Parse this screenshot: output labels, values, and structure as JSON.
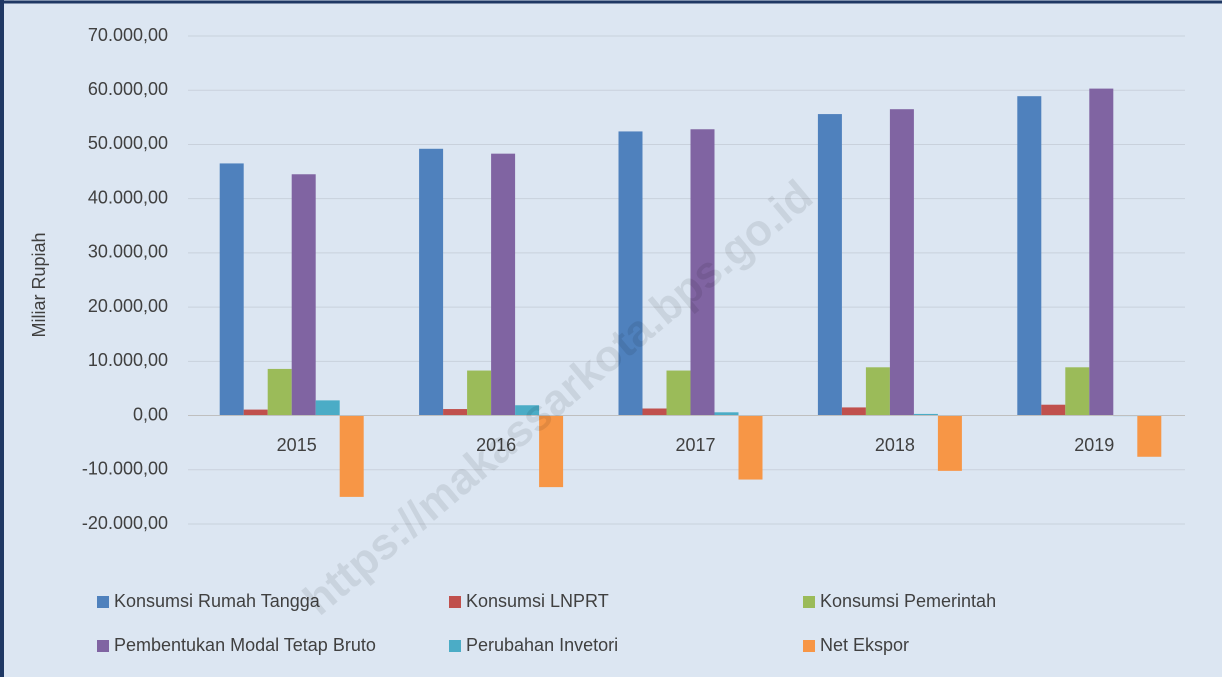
{
  "chart_data": {
    "type": "bar",
    "y_axis_label": "Miliar Rupiah",
    "watermark": "https://makassarkota.bps.go.id",
    "categories": [
      "2015",
      "2016",
      "2017",
      "2018",
      "2019"
    ],
    "series": [
      {
        "name": "Konsumsi Rumah Tangga",
        "color": "#4f81bd",
        "values": [
          46500,
          49200,
          52400,
          55600,
          58900
        ]
      },
      {
        "name": "Konsumsi LNPRT",
        "color": "#c0504d",
        "values": [
          1100,
          1200,
          1300,
          1500,
          2000
        ]
      },
      {
        "name": "Konsumsi Pemerintah",
        "color": "#9bbb59",
        "values": [
          8600,
          8300,
          8300,
          8900,
          8900
        ]
      },
      {
        "name": "Pembentukan Modal Tetap Bruto",
        "color": "#8064a2",
        "values": [
          44500,
          48300,
          52800,
          56500,
          60300
        ]
      },
      {
        "name": "Perubahan Invetori",
        "color": "#4bacc6",
        "values": [
          2800,
          1900,
          600,
          300,
          -100
        ]
      },
      {
        "name": "Net Ekspor",
        "color": "#f79646",
        "values": [
          -15000,
          -13200,
          -11800,
          -10200,
          -7600
        ]
      }
    ],
    "ylim": [
      -20000,
      70000
    ],
    "yticks": [
      {
        "value": -20000,
        "label": "-20.000,00"
      },
      {
        "value": -10000,
        "label": "-10.000,00"
      },
      {
        "value": 0,
        "label": "0,00"
      },
      {
        "value": 10000,
        "label": "10.000,00"
      },
      {
        "value": 20000,
        "label": "20.000,00"
      },
      {
        "value": 30000,
        "label": "30.000,00"
      },
      {
        "value": 40000,
        "label": "40.000,00"
      },
      {
        "value": 50000,
        "label": "50.000,00"
      },
      {
        "value": 60000,
        "label": "60.000,00"
      },
      {
        "value": 70000,
        "label": "70.000,00"
      }
    ],
    "grid": true
  }
}
